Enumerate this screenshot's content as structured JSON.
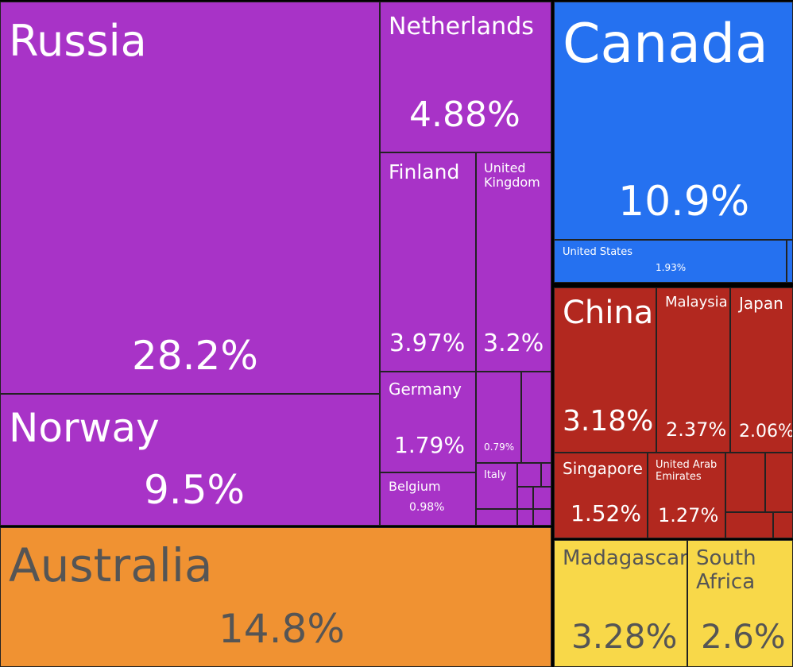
{
  "chart_data": {
    "type": "treemap",
    "colors": {
      "europe": "#a833c7",
      "north_america": "#2571f0",
      "asia": "#b2281f",
      "oceania": "#f09232",
      "africa": "#f8d849",
      "dark_text": "#555555",
      "light_text": "#ffffff"
    },
    "items": [
      {
        "name": "Russia",
        "value": 28.2,
        "value_label": "28.2%",
        "group": "europe"
      },
      {
        "name": "Norway",
        "value": 9.5,
        "value_label": "9.5%",
        "group": "europe"
      },
      {
        "name": "Netherlands",
        "value": 4.88,
        "value_label": "4.88%",
        "group": "europe"
      },
      {
        "name": "Finland",
        "value": 3.97,
        "value_label": "3.97%",
        "group": "europe"
      },
      {
        "name": "United\nKingdom",
        "value": 3.2,
        "value_label": "3.2%",
        "group": "europe"
      },
      {
        "name": "Germany",
        "value": 1.79,
        "value_label": "1.79%",
        "group": "europe"
      },
      {
        "name": "",
        "value": 0.79,
        "value_label": "0.79%",
        "group": "europe"
      },
      {
        "name": "Belgium",
        "value": 0.98,
        "value_label": "0.98%",
        "group": "europe"
      },
      {
        "name": "Italy",
        "value": null,
        "value_label": "",
        "group": "europe"
      },
      {
        "name": "Canada",
        "value": 10.9,
        "value_label": "10.9%",
        "group": "north_america"
      },
      {
        "name": "United States",
        "value": 1.93,
        "value_label": "1.93%",
        "group": "north_america"
      },
      {
        "name": "China",
        "value": 3.18,
        "value_label": "3.18%",
        "group": "asia"
      },
      {
        "name": "Malaysia",
        "value": 2.37,
        "value_label": "2.37%",
        "group": "asia"
      },
      {
        "name": "Japan",
        "value": 2.06,
        "value_label": "2.06%",
        "group": "asia"
      },
      {
        "name": "Singapore",
        "value": 1.52,
        "value_label": "1.52%",
        "group": "asia"
      },
      {
        "name": "United Arab\nEmirates",
        "value": 1.27,
        "value_label": "1.27%",
        "group": "asia"
      },
      {
        "name": "Australia",
        "value": 14.8,
        "value_label": "14.8%",
        "group": "oceania"
      },
      {
        "name": "Madagascar",
        "value": 3.28,
        "value_label": "3.28%",
        "group": "africa"
      },
      {
        "name": "South\nAfrica",
        "value": 2.6,
        "value_label": "2.6%",
        "group": "africa"
      }
    ]
  }
}
